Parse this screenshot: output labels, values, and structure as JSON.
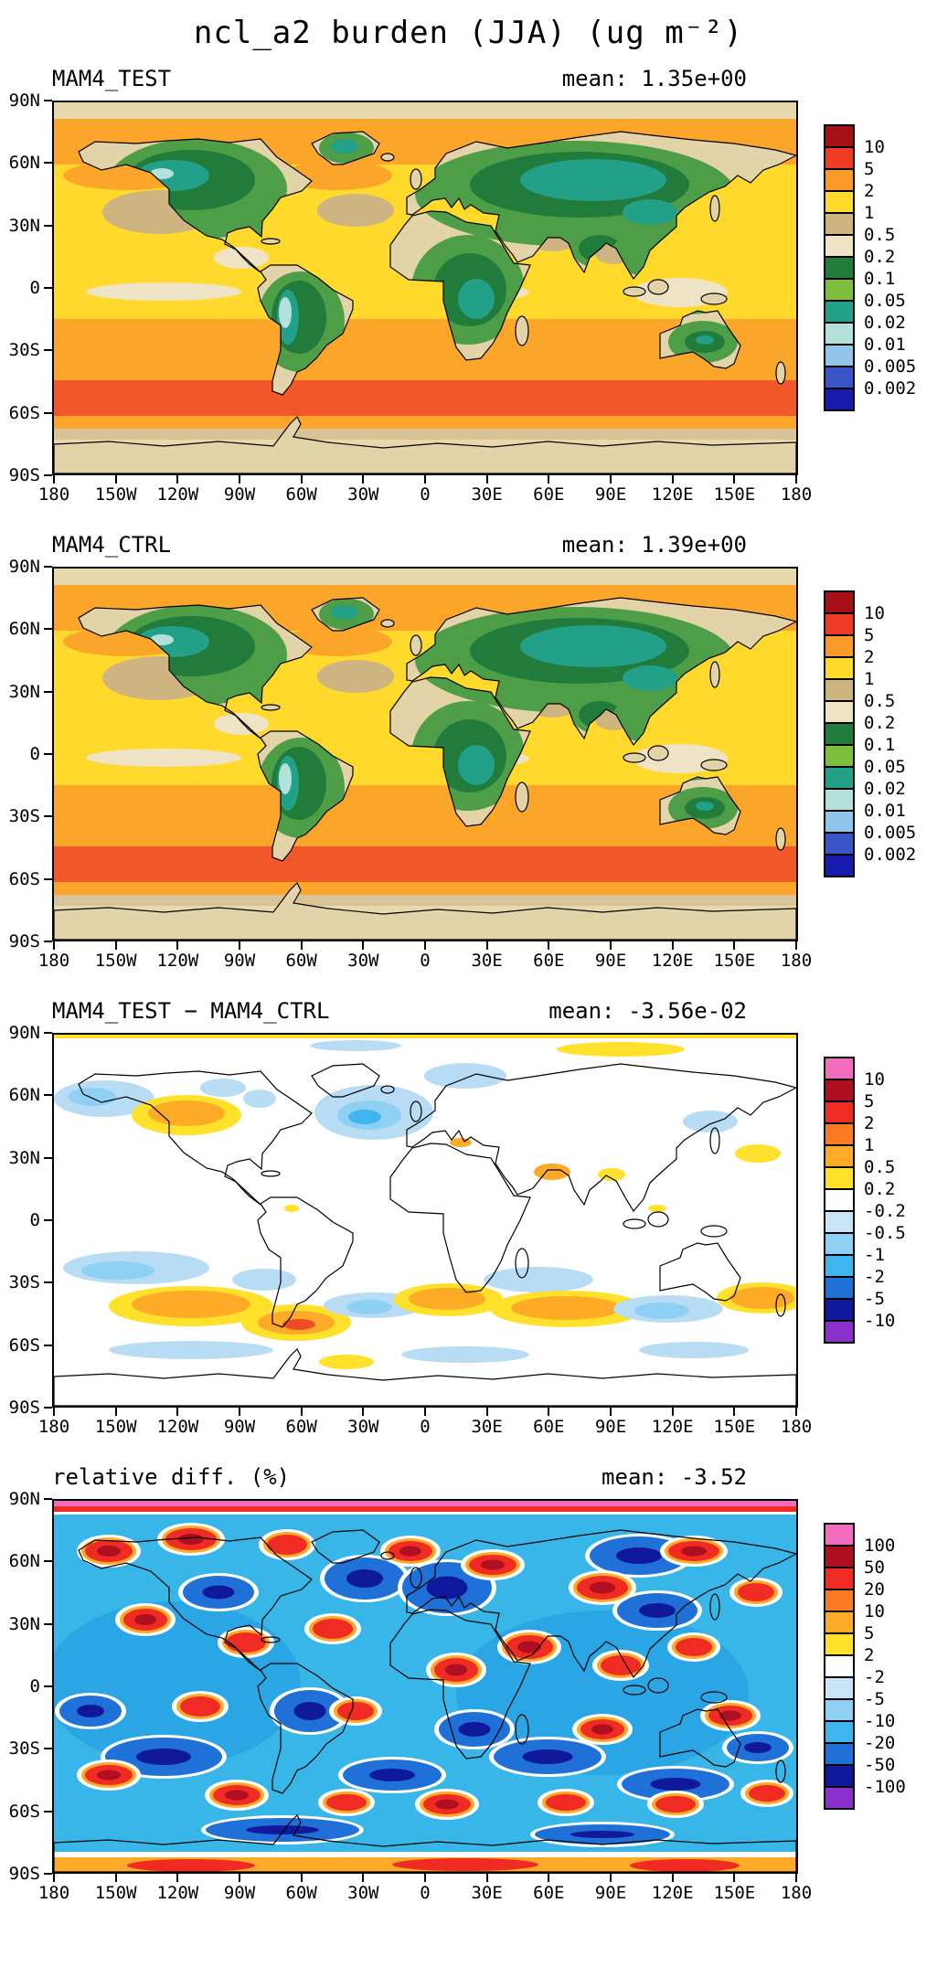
{
  "figure": {
    "title": "ncl_a2 burden (JJA) (ug m⁻²)"
  },
  "axes": {
    "y_tick_labels": [
      "90N",
      "60N",
      "30N",
      "0",
      "30S",
      "60S",
      "90S"
    ],
    "x_tick_labels": [
      "180",
      "150W",
      "120W",
      "90W",
      "60W",
      "30W",
      "0",
      "30E",
      "60E",
      "90E",
      "120E",
      "150E",
      "180"
    ]
  },
  "panels": [
    {
      "title": "MAM4_TEST",
      "mean_text": "mean: 1.35e+00",
      "colorbar": {
        "tick_labels": [
          "10",
          "5",
          "2",
          "1",
          "0.5",
          "0.2",
          "0.1",
          "0.05",
          "0.02",
          "0.01",
          "0.005",
          "0.002"
        ],
        "cell_colors_top_to_bottom": [
          "#a50f15",
          "#ef3b24",
          "#fb9a29",
          "#ffd92b",
          "#cdb480",
          "#eee3c4",
          "#217c3b",
          "#7dbe3d",
          "#23a088",
          "#b4e2da",
          "#92c5ea",
          "#3a55c8",
          "#181cae"
        ]
      }
    },
    {
      "title": "MAM4_CTRL",
      "mean_text": "mean: 1.39e+00",
      "colorbar": {
        "tick_labels": [
          "10",
          "5",
          "2",
          "1",
          "0.5",
          "0.2",
          "0.1",
          "0.05",
          "0.02",
          "0.01",
          "0.005",
          "0.002"
        ],
        "cell_colors_top_to_bottom": [
          "#a50f15",
          "#ef3b24",
          "#fb9a29",
          "#ffd92b",
          "#cdb480",
          "#eee3c4",
          "#217c3b",
          "#7dbe3d",
          "#23a088",
          "#b4e2da",
          "#92c5ea",
          "#3a55c8",
          "#181cae"
        ]
      }
    },
    {
      "title": "MAM4_TEST − MAM4_CTRL",
      "mean_text": "mean: -3.56e-02",
      "colorbar": {
        "tick_labels": [
          "10",
          "5",
          "2",
          "1",
          "0.5",
          "0.2",
          "-0.2",
          "-0.5",
          "-1",
          "-2",
          "-5",
          "-10"
        ],
        "cell_colors_top_to_bottom": [
          "#f26cbe",
          "#ae1021",
          "#ef2b24",
          "#fb7a23",
          "#fdaa27",
          "#ffe12c",
          "#ffffff",
          "#c9e4f6",
          "#8ed0f4",
          "#40b4ec",
          "#1f71d8",
          "#10189c",
          "#8a30cc"
        ]
      }
    },
    {
      "title": "relative diff. (%)",
      "mean_text": "mean: -3.52",
      "colorbar": {
        "tick_labels": [
          "100",
          "50",
          "20",
          "10",
          "5",
          "2",
          "-2",
          "-5",
          "-10",
          "-20",
          "-50",
          "-100"
        ],
        "cell_colors_top_to_bottom": [
          "#f26cbe",
          "#ae1021",
          "#ef2b24",
          "#fb7a23",
          "#fdaa27",
          "#ffe12c",
          "#ffffff",
          "#c9e4f6",
          "#8ed0f4",
          "#40b4ec",
          "#1f71d8",
          "#10189c",
          "#8a30cc"
        ]
      }
    }
  ],
  "chart_data": [
    {
      "type": "heatmap",
      "subtype": "filled_contour_world_map",
      "panel": 1,
      "title": "MAM4_TEST",
      "variable": "ncl_a2 burden",
      "season": "JJA",
      "units": "ug m⁻²",
      "projection": "cylindrical equidistant",
      "lon_range": [
        -180,
        180
      ],
      "lat_range": [
        -90,
        90
      ],
      "mean": 1.35,
      "mean_label": "mean: 1.35e+00",
      "contour_levels": [
        0.002,
        0.005,
        0.01,
        0.02,
        0.05,
        0.1,
        0.2,
        0.5,
        1,
        2,
        5,
        10
      ],
      "colors_low_to_high": [
        "#181cae",
        "#3a55c8",
        "#92c5ea",
        "#b4e2da",
        "#23a088",
        "#7dbe3d",
        "#217c3b",
        "#eee3c4",
        "#cdb480",
        "#ffd92b",
        "#fb9a29",
        "#ef3b24",
        "#a50f15"
      ],
      "pattern_summary": "Burden 1-2 over most tropical and midlatitude oceans; circumpolar maximum band of 2-10 near 45-60S; 0.2-1 (tan/beige) near poles, Antarctica and subtropical ocean patches; 0.02-0.2 (greens/teal) over continental interiors; minima 0.01-0.02 (pale cyan) over the Andes and western North America."
    },
    {
      "type": "heatmap",
      "subtype": "filled_contour_world_map",
      "panel": 2,
      "title": "MAM4_CTRL",
      "variable": "ncl_a2 burden",
      "season": "JJA",
      "units": "ug m⁻²",
      "projection": "cylindrical equidistant",
      "lon_range": [
        -180,
        180
      ],
      "lat_range": [
        -90,
        90
      ],
      "mean": 1.39,
      "mean_label": "mean: 1.39e+00",
      "contour_levels": [
        0.002,
        0.005,
        0.01,
        0.02,
        0.05,
        0.1,
        0.2,
        0.5,
        1,
        2,
        5,
        10
      ],
      "colors_low_to_high": [
        "#181cae",
        "#3a55c8",
        "#92c5ea",
        "#b4e2da",
        "#23a088",
        "#7dbe3d",
        "#217c3b",
        "#eee3c4",
        "#cdb480",
        "#ffd92b",
        "#fb9a29",
        "#ef3b24",
        "#a50f15"
      ],
      "pattern_summary": "Nearly identical pattern to MAM4_TEST: oceanic burden 1-10 peaking in the Southern Ocean storm track, low continental values 0.02-0.2, Andes minimum 0.01-0.02."
    },
    {
      "type": "heatmap",
      "subtype": "filled_contour_world_map",
      "panel": 3,
      "title": "MAM4_TEST − MAM4_CTRL",
      "variable": "ncl_a2 burden difference",
      "season": "JJA",
      "units": "ug m⁻²",
      "projection": "cylindrical equidistant",
      "lon_range": [
        -180,
        180
      ],
      "lat_range": [
        -90,
        90
      ],
      "mean": -0.0356,
      "mean_label": "mean: -3.56e-02",
      "contour_levels": [
        -10,
        -5,
        -2,
        -1,
        -0.5,
        -0.2,
        0.2,
        0.5,
        1,
        2,
        5,
        10
      ],
      "colors_low_to_high": [
        "#8a30cc",
        "#10189c",
        "#1f71d8",
        "#40b4ec",
        "#8ed0f4",
        "#c9e4f6",
        "#ffffff",
        "#ffe12c",
        "#fdaa27",
        "#fb7a23",
        "#ef2b24",
        "#ae1021",
        "#f26cbe"
      ],
      "pattern_summary": "Mostly within +/-0.2 (white). Negative patches (-2 to -0.2, light blues) over the North Atlantic, Bering Sea/North Pacific rim and several Southern Ocean sectors; positive patches (0.2 to 2, yellow/orange) over the central North Pacific and southern midlatitude oceans, strongest near the tip of South America."
    },
    {
      "type": "heatmap",
      "subtype": "filled_contour_world_map",
      "panel": 4,
      "title": "relative diff. (%)",
      "variable": "ncl_a2 burden relative difference",
      "season": "JJA",
      "units": "%",
      "projection": "cylindrical equidistant",
      "lon_range": [
        -180,
        180
      ],
      "lat_range": [
        -90,
        90
      ],
      "mean": -3.52,
      "mean_label": "mean: -3.52",
      "contour_levels": [
        -100,
        -50,
        -20,
        -10,
        -5,
        -2,
        2,
        5,
        10,
        20,
        50,
        100
      ],
      "colors_low_to_high": [
        "#8a30cc",
        "#10189c",
        "#1f71d8",
        "#40b4ec",
        "#8ed0f4",
        "#c9e4f6",
        "#ffffff",
        "#ffe12c",
        "#fdaa27",
        "#fb7a23",
        "#ef2b24",
        "#ae1021",
        "#f26cbe"
      ],
      "pattern_summary": "Noisy alternation of positive (red/orange, 5-100%) and negative (blue/navy, -5 to -100%) relative differences over all basins; pronounced negative (navy) region over Europe/northeast Atlantic; pink/red stripe at the northern map edge and orange/red band at the southern edge."
    }
  ]
}
